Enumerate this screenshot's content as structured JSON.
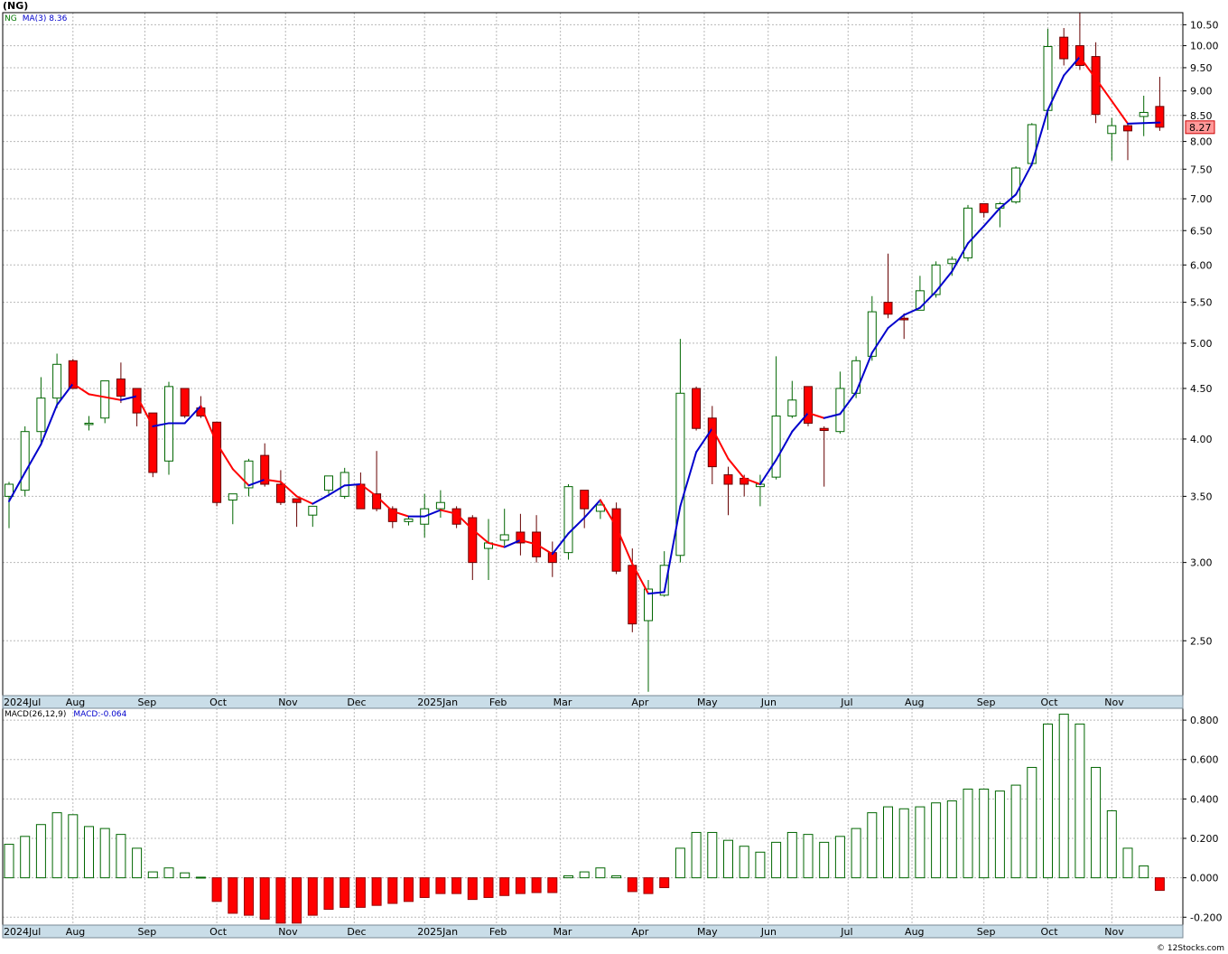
{
  "header": {
    "title": "(NG)"
  },
  "price_legend": {
    "symbol": "NG",
    "ma_label": "MA(3)",
    "ma_value": "8.36"
  },
  "macd_legend": {
    "label": "MACD(26,12,9)",
    "value": "MACD:-0.064"
  },
  "last_price_tag": "8.27",
  "credit": "© 12Stocks.com",
  "colors": {
    "up": "#006600",
    "down": "#ff0000",
    "ma_up": "#0000cc",
    "ma_down": "#ff0000",
    "axis_bar": "#c9dde8"
  },
  "chart_data": [
    {
      "type": "candlestick",
      "name": "price",
      "y_scale": "log",
      "ylim": [
        2.2,
        10.8
      ],
      "y_ticks": [
        "2.50",
        "3.00",
        "3.50",
        "4.00",
        "4.50",
        "5.00",
        "5.50",
        "6.00",
        "6.50",
        "7.00",
        "7.50",
        "8.00",
        "8.50",
        "9.00",
        "9.50",
        "10.00",
        "10.50"
      ],
      "x_ticks": [
        {
          "label": "2024Jul",
          "week": -0.3
        },
        {
          "label": "Aug",
          "week": 4
        },
        {
          "label": "Sep",
          "week": 8.5
        },
        {
          "label": "Oct",
          "week": 13
        },
        {
          "label": "Nov",
          "week": 17.3
        },
        {
          "label": "Dec",
          "week": 21.6
        },
        {
          "label": "2025Jan",
          "week": 26
        },
        {
          "label": "Feb",
          "week": 30.5
        },
        {
          "label": "Mar",
          "week": 34.5
        },
        {
          "label": "Apr",
          "week": 39.4
        },
        {
          "label": "May",
          "week": 43.5
        },
        {
          "label": "Jun",
          "week": 47.5
        },
        {
          "label": "Jul",
          "week": 52.5
        },
        {
          "label": "Aug",
          "week": 56.5
        },
        {
          "label": "Sep",
          "week": 61
        },
        {
          "label": "Oct",
          "week": 65
        },
        {
          "label": "Nov",
          "week": 69
        }
      ],
      "candles": [
        [
          3.5,
          3.62,
          3.25,
          3.6
        ],
        [
          3.55,
          4.12,
          3.5,
          4.07
        ],
        [
          4.07,
          4.62,
          3.96,
          4.4
        ],
        [
          4.4,
          4.88,
          4.3,
          4.76
        ],
        [
          4.8,
          4.82,
          4.5,
          4.5
        ],
        [
          4.15,
          4.22,
          4.08,
          4.15
        ],
        [
          4.2,
          4.58,
          4.15,
          4.58
        ],
        [
          4.6,
          4.78,
          4.35,
          4.42
        ],
        [
          4.5,
          4.5,
          4.12,
          4.25
        ],
        [
          4.25,
          4.25,
          3.66,
          3.7
        ],
        [
          3.8,
          4.57,
          3.68,
          4.52
        ],
        [
          4.5,
          4.5,
          4.2,
          4.22
        ],
        [
          4.3,
          4.42,
          4.2,
          4.22
        ],
        [
          4.16,
          4.16,
          3.42,
          3.45
        ],
        [
          3.47,
          3.52,
          3.28,
          3.52
        ],
        [
          3.57,
          3.82,
          3.5,
          3.8
        ],
        [
          3.85,
          3.96,
          3.58,
          3.6
        ],
        [
          3.6,
          3.72,
          3.43,
          3.45
        ],
        [
          3.48,
          3.48,
          3.26,
          3.45
        ],
        [
          3.35,
          3.42,
          3.26,
          3.42
        ],
        [
          3.55,
          3.67,
          3.52,
          3.67
        ],
        [
          3.5,
          3.74,
          3.48,
          3.7
        ],
        [
          3.6,
          3.7,
          3.4,
          3.4
        ],
        [
          3.52,
          3.89,
          3.38,
          3.4
        ],
        [
          3.4,
          3.42,
          3.25,
          3.3
        ],
        [
          3.3,
          3.34,
          3.27,
          3.32
        ],
        [
          3.28,
          3.52,
          3.18,
          3.4
        ],
        [
          3.4,
          3.55,
          3.33,
          3.45
        ],
        [
          3.4,
          3.42,
          3.25,
          3.28
        ],
        [
          3.33,
          3.35,
          2.88,
          3.0
        ],
        [
          3.1,
          3.32,
          2.88,
          3.14
        ],
        [
          3.16,
          3.4,
          3.12,
          3.2
        ],
        [
          3.22,
          3.36,
          3.05,
          3.14
        ],
        [
          3.22,
          3.35,
          3.0,
          3.04
        ],
        [
          3.07,
          3.15,
          2.9,
          3.0
        ],
        [
          3.07,
          3.6,
          3.02,
          3.58
        ],
        [
          3.55,
          3.55,
          3.25,
          3.4
        ],
        [
          3.38,
          3.45,
          3.32,
          3.43
        ],
        [
          3.4,
          3.45,
          2.92,
          2.94
        ],
        [
          2.98,
          3.1,
          2.55,
          2.6
        ],
        [
          2.62,
          2.88,
          2.22,
          2.82
        ],
        [
          2.78,
          3.08,
          2.77,
          2.98
        ],
        [
          3.05,
          5.05,
          3.0,
          4.45
        ],
        [
          4.5,
          4.52,
          4.08,
          4.1
        ],
        [
          4.2,
          4.32,
          3.6,
          3.75
        ],
        [
          3.68,
          3.75,
          3.35,
          3.6
        ],
        [
          3.65,
          3.68,
          3.5,
          3.6
        ],
        [
          3.58,
          3.68,
          3.42,
          3.6
        ],
        [
          3.66,
          4.85,
          3.64,
          4.22
        ],
        [
          4.22,
          4.58,
          4.2,
          4.38
        ],
        [
          4.52,
          4.52,
          4.12,
          4.15
        ],
        [
          4.1,
          4.12,
          3.58,
          4.08
        ],
        [
          4.07,
          4.68,
          4.05,
          4.5
        ],
        [
          4.45,
          4.85,
          4.4,
          4.8
        ],
        [
          4.85,
          5.58,
          4.8,
          5.38
        ],
        [
          5.5,
          6.16,
          5.3,
          5.35
        ],
        [
          5.3,
          5.36,
          5.05,
          5.28
        ],
        [
          5.4,
          5.85,
          5.4,
          5.65
        ],
        [
          5.6,
          6.05,
          5.56,
          6.0
        ],
        [
          6.02,
          6.12,
          5.85,
          6.08
        ],
        [
          6.1,
          6.9,
          6.05,
          6.85
        ],
        [
          6.92,
          6.92,
          6.7,
          6.78
        ],
        [
          6.85,
          6.95,
          6.55,
          6.92
        ],
        [
          6.95,
          7.55,
          6.92,
          7.52
        ],
        [
          7.6,
          8.35,
          7.55,
          8.32
        ],
        [
          8.6,
          10.4,
          8.22,
          9.98
        ],
        [
          10.2,
          10.42,
          9.55,
          9.7
        ],
        [
          10.0,
          10.8,
          9.45,
          9.55
        ],
        [
          9.75,
          10.08,
          8.35,
          8.52
        ],
        [
          8.15,
          8.45,
          7.65,
          8.3
        ],
        [
          8.3,
          8.35,
          7.66,
          8.2
        ],
        [
          8.48,
          8.9,
          8.1,
          8.56
        ],
        [
          8.68,
          9.3,
          8.2,
          8.27
        ]
      ],
      "ma3": [
        3.46,
        3.7,
        3.95,
        4.33,
        4.55,
        4.44,
        4.41,
        4.38,
        4.42,
        4.12,
        4.15,
        4.15,
        4.32,
        3.96,
        3.73,
        3.59,
        3.64,
        3.62,
        3.5,
        3.44,
        3.51,
        3.59,
        3.6,
        3.5,
        3.38,
        3.34,
        3.34,
        3.39,
        3.36,
        3.24,
        3.14,
        3.11,
        3.16,
        3.13,
        3.06,
        3.21,
        3.33,
        3.47,
        3.26,
        2.99,
        2.79,
        2.8,
        3.42,
        3.88,
        4.1,
        3.82,
        3.65,
        3.6,
        3.81,
        4.07,
        4.25,
        4.2,
        4.24,
        4.46,
        4.89,
        5.18,
        5.34,
        5.43,
        5.64,
        5.91,
        6.31,
        6.57,
        6.85,
        7.07,
        7.59,
        8.61,
        9.33,
        9.74,
        9.26,
        8.79,
        8.34,
        8.35,
        8.36
      ]
    },
    {
      "type": "bar",
      "name": "MACD histogram",
      "ylim": [
        -0.24,
        0.86
      ],
      "y_ticks": [
        "0.800",
        "0.600",
        "0.400",
        "0.200",
        "0.000",
        "-0.200"
      ],
      "values": [
        0.17,
        0.21,
        0.27,
        0.33,
        0.32,
        0.26,
        0.25,
        0.22,
        0.15,
        0.03,
        0.05,
        0.025,
        0.003,
        -0.12,
        -0.18,
        -0.19,
        -0.21,
        -0.23,
        -0.23,
        -0.19,
        -0.16,
        -0.15,
        -0.15,
        -0.14,
        -0.13,
        -0.12,
        -0.1,
        -0.08,
        -0.08,
        -0.11,
        -0.1,
        -0.09,
        -0.08,
        -0.075,
        -0.075,
        0.01,
        0.03,
        0.05,
        0.01,
        -0.07,
        -0.08,
        -0.05,
        0.15,
        0.23,
        0.23,
        0.19,
        0.16,
        0.13,
        0.18,
        0.23,
        0.22,
        0.18,
        0.21,
        0.25,
        0.33,
        0.36,
        0.35,
        0.36,
        0.38,
        0.39,
        0.45,
        0.45,
        0.44,
        0.47,
        0.56,
        0.78,
        0.83,
        0.78,
        0.56,
        0.34,
        0.15,
        0.06,
        -0.064
      ]
    }
  ]
}
